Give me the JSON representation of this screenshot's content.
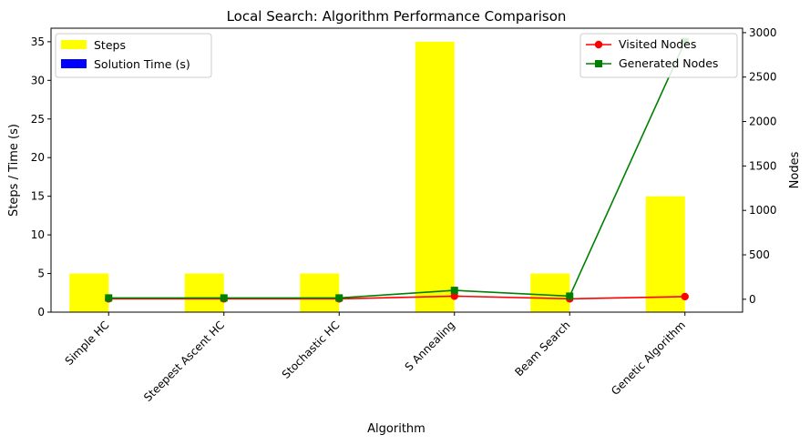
{
  "chart_data": {
    "type": "bar",
    "title": "Local Search: Algorithm Performance Comparison",
    "xlabel": "Algorithm",
    "ylabel": "Steps / Time (s)",
    "y2label": "Nodes",
    "categories": [
      "Simple HC",
      "Steepest Ascent HC",
      "Stochastic HC",
      "S Annealing",
      "Beam Search",
      "Genetic Algorithm"
    ],
    "ylim": [
      0,
      36.75
    ],
    "y2lim": [
      -145,
      3050
    ],
    "yticks": [
      0,
      5,
      10,
      15,
      20,
      25,
      30,
      35
    ],
    "y2ticks": [
      0,
      500,
      1000,
      1500,
      2000,
      2500,
      3000
    ],
    "bar_series": [
      {
        "name": "Steps",
        "color": "#ffff00",
        "values": [
          5,
          5,
          5,
          35,
          5,
          15
        ]
      },
      {
        "name": "Solution Time (s)",
        "color": "#0000ff",
        "values": [
          0.001,
          0.001,
          0.001,
          0.01,
          0.002,
          0.02
        ]
      }
    ],
    "line_series": [
      {
        "name": "Visited Nodes",
        "color": "#ff0000",
        "marker": "circle",
        "axis": "right",
        "values": [
          5,
          5,
          5,
          35,
          5,
          30
        ]
      },
      {
        "name": "Generated Nodes",
        "color": "#008000",
        "marker": "square",
        "axis": "right",
        "values": [
          15,
          15,
          15,
          100,
          35,
          2900
        ]
      }
    ],
    "legend_left": "top-left",
    "legend_right": "top-right",
    "grid": false
  }
}
